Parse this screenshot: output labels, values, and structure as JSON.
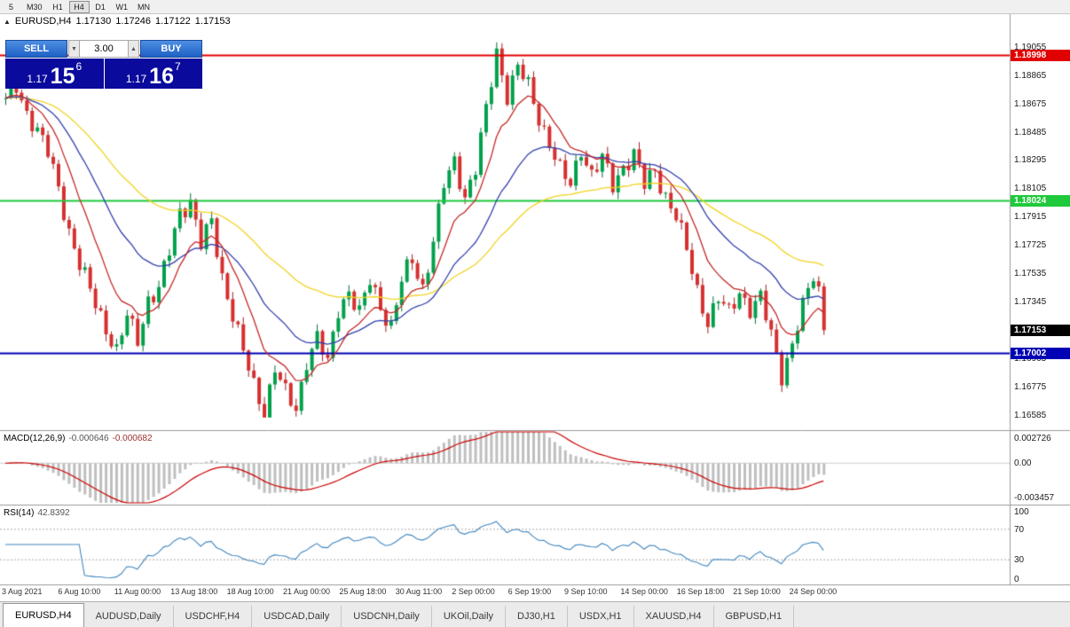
{
  "toolbar": {
    "timeframes": [
      "5",
      "M30",
      "H1",
      "H4",
      "D1",
      "W1",
      "MN"
    ],
    "active": "H4"
  },
  "chart_header": {
    "symbol": "EURUSD,H4",
    "ohlc": [
      "1.17130",
      "1.17246",
      "1.17122",
      "1.17153"
    ]
  },
  "trade_panel": {
    "sell_label": "SELL",
    "buy_label": "BUY",
    "lot_size": "3.00",
    "sell_price_big": "1.17",
    "sell_price_pips": "15",
    "sell_price_sup": "6",
    "buy_price_big": "1.17",
    "buy_price_pips": "16",
    "buy_price_sup": "7"
  },
  "price_axis": {
    "labels": [
      "1.19055",
      "1.18865",
      "1.18675",
      "1.18485",
      "1.18295",
      "1.18105",
      "1.17915",
      "1.17725",
      "1.17535",
      "1.17345",
      "1.17155",
      "1.16965",
      "1.16775",
      "1.16585"
    ],
    "current": 1.17153,
    "current_label": "1.17153",
    "current_badge_color": "#000000"
  },
  "macd": {
    "name": "MACD(12,26,9)",
    "value_main": "-0.000646",
    "value_signal": "-0.000682",
    "axis": [
      "0.002726",
      "0.00",
      "-0.003457"
    ]
  },
  "rsi": {
    "name": "RSI(14)",
    "value": "42.8392",
    "axis": [
      "100",
      "70",
      "30",
      "0"
    ]
  },
  "time_axis": [
    "3 Aug 2021",
    "6 Aug 10:00",
    "11 Aug 00:00",
    "13 Aug 18:00",
    "18 Aug 10:00",
    "21 Aug 00:00",
    "25 Aug 18:00",
    "30 Aug 11:00",
    "2 Sep 00:00",
    "6 Sep 19:00",
    "9 Sep 10:00",
    "14 Sep 00:00",
    "16 Sep 18:00",
    "21 Sep 10:00",
    "24 Sep 00:00"
  ],
  "tabs": {
    "items": [
      "EURUSD,H4",
      "AUDUSD,Daily",
      "USDCHF,H4",
      "USDCAD,Daily",
      "USDCNH,Daily",
      "UKOil,Daily",
      "DJ30,H1",
      "USDX,H1",
      "XAUUSD,H4",
      "GBPUSD,H1"
    ],
    "active_index": 0
  },
  "chart_data": {
    "type": "candlestick",
    "symbol": "EURUSD",
    "timeframe": "H4",
    "num_candles": 156,
    "price_range": {
      "max": 1.1925,
      "min": 1.165
    },
    "close_waypoints": [
      [
        0,
        1.1868
      ],
      [
        2,
        1.188
      ],
      [
        4,
        1.1862
      ],
      [
        6,
        1.1848
      ],
      [
        8,
        1.1834
      ],
      [
        10,
        1.1812
      ],
      [
        12,
        1.1782
      ],
      [
        14,
        1.1758
      ],
      [
        16,
        1.1742
      ],
      [
        18,
        1.1726
      ],
      [
        21,
        1.17
      ],
      [
        23,
        1.1724
      ],
      [
        25,
        1.171
      ],
      [
        27,
        1.1736
      ],
      [
        29,
        1.1742
      ],
      [
        31,
        1.1768
      ],
      [
        33,
        1.1796
      ],
      [
        35,
        1.1802
      ],
      [
        37,
        1.1772
      ],
      [
        39,
        1.1788
      ],
      [
        41,
        1.1752
      ],
      [
        43,
        1.1726
      ],
      [
        45,
        1.17
      ],
      [
        47,
        1.1678
      ],
      [
        49,
        1.1662
      ],
      [
        51,
        1.169
      ],
      [
        53,
        1.1672
      ],
      [
        55,
        1.1662
      ],
      [
        57,
        1.1696
      ],
      [
        59,
        1.171
      ],
      [
        61,
        1.1692
      ],
      [
        63,
        1.173
      ],
      [
        65,
        1.1742
      ],
      [
        67,
        1.1726
      ],
      [
        69,
        1.1748
      ],
      [
        71,
        1.1732
      ],
      [
        73,
        1.1718
      ],
      [
        75,
        1.1748
      ],
      [
        77,
        1.1762
      ],
      [
        79,
        1.1744
      ],
      [
        81,
        1.1776
      ],
      [
        83,
        1.1812
      ],
      [
        85,
        1.1828
      ],
      [
        87,
        1.1806
      ],
      [
        89,
        1.1824
      ],
      [
        91,
        1.1862
      ],
      [
        93,
        1.1902
      ],
      [
        95,
        1.1874
      ],
      [
        97,
        1.1892
      ],
      [
        99,
        1.1878
      ],
      [
        101,
        1.1858
      ],
      [
        103,
        1.1842
      ],
      [
        105,
        1.1822
      ],
      [
        107,
        1.1812
      ],
      [
        109,
        1.1838
      ],
      [
        111,
        1.182
      ],
      [
        113,
        1.183
      ],
      [
        115,
        1.1812
      ],
      [
        117,
        1.1826
      ],
      [
        119,
        1.1834
      ],
      [
        121,
        1.1812
      ],
      [
        123,
        1.1822
      ],
      [
        125,
        1.1806
      ],
      [
        127,
        1.1792
      ],
      [
        129,
        1.1768
      ],
      [
        131,
        1.1742
      ],
      [
        133,
        1.1722
      ],
      [
        135,
        1.1736
      ],
      [
        137,
        1.1726
      ],
      [
        139,
        1.1742
      ],
      [
        141,
        1.173
      ],
      [
        143,
        1.1736
      ],
      [
        145,
        1.1712
      ],
      [
        147,
        1.1686
      ],
      [
        149,
        1.1706
      ],
      [
        151,
        1.173
      ],
      [
        153,
        1.1752
      ],
      [
        154,
        1.1742
      ],
      [
        155,
        1.17153
      ]
    ],
    "extremes": {
      "high": [
        93,
        1.19085
      ],
      "lows": [
        [
          49,
          1.1658
        ],
        [
          55,
          1.16605
        ],
        [
          147,
          1.1675
        ]
      ]
    },
    "moving_averages": [
      {
        "period": 55,
        "color": "#f0d322"
      },
      {
        "period": 25,
        "color": "#3240ad"
      },
      {
        "period": 10,
        "color": "#c62828"
      }
    ],
    "horizontal_lines": [
      {
        "price": 1.18998,
        "label": "1.18998",
        "color": "#e00000"
      },
      {
        "price": 1.18024,
        "label": "1.18024",
        "color": "#1fc93c"
      },
      {
        "price": 1.17002,
        "label": "1.17002",
        "color": "#0000b4"
      }
    ],
    "colors": {
      "bull": "#00a14b",
      "bull_dark": "#00713a",
      "bear": "#d63030",
      "bear_dark": "#a31f1f",
      "macd_hist": "#bfbfbf",
      "macd_signal": "#cc0000",
      "rsi": "#4186be"
    },
    "macd_range": {
      "max": 0.002726,
      "min": -0.003457
    },
    "rsi_levels": [
      70,
      30
    ]
  }
}
